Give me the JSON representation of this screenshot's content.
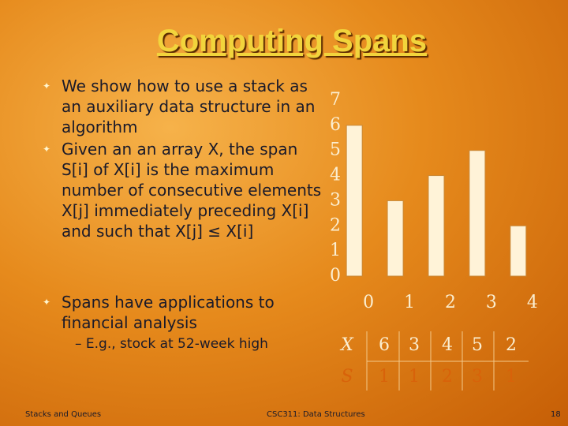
{
  "title": "Computing Spans",
  "bullets": [
    "We show how to use a stack as an auxiliary data structure in an algorithm",
    "Given an an array X, the span S[i] of X[i] is the maximum number of consecutive elements X[j] immediately preceding X[i] and such that X[j] ≤ X[i]",
    "Spans have applications to financial analysis"
  ],
  "sub_bullet": "– E.g., stock at 52-week high",
  "chart_data": {
    "type": "bar",
    "x": [
      0,
      1,
      2,
      3,
      4
    ],
    "values": [
      6,
      3,
      4,
      5,
      2
    ],
    "color": "#fff3d8",
    "xlim": [
      -0.6,
      4.6
    ],
    "xticks": [
      0,
      1,
      2,
      3,
      4
    ],
    "ylim": [
      0,
      7
    ],
    "yticks": [
      0,
      1,
      2,
      3,
      4,
      5,
      6,
      7
    ]
  },
  "table": {
    "rows": [
      [
        "X",
        "6",
        "3",
        "4",
        "5",
        "2"
      ],
      [
        "S",
        "1",
        "1",
        "2",
        "3",
        "1"
      ]
    ]
  },
  "footer": {
    "left": "Stacks and Queues",
    "center": "CSC311: Data Structures",
    "page": "18"
  }
}
